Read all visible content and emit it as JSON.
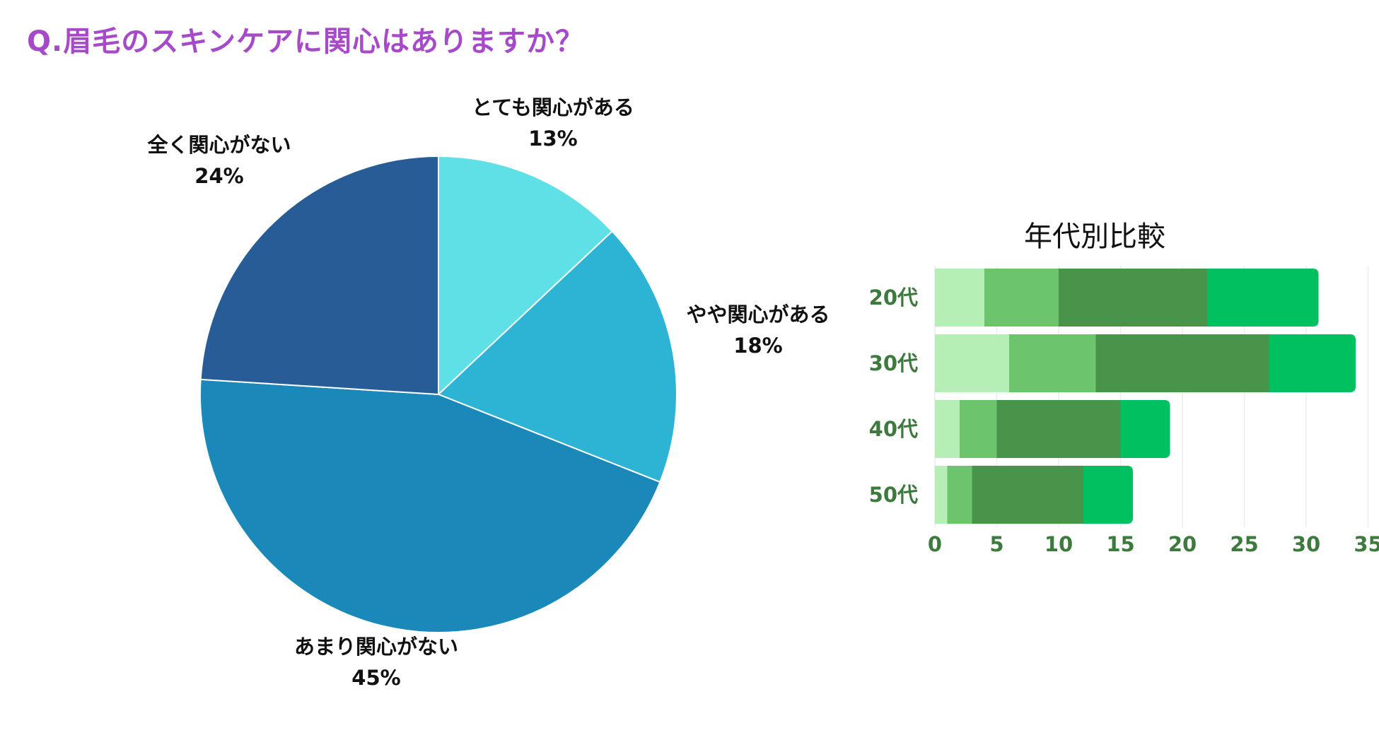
{
  "page": {
    "title": "Q.眉毛のスキンケアに関心はありますか？",
    "title_color": "#a64ac9"
  },
  "chart_data": [
    {
      "type": "pie",
      "title": "",
      "slices": [
        {
          "label": "とても関心がある",
          "value": 13,
          "value_label": "13%",
          "color": "#5ee0e6"
        },
        {
          "label": "やや関心がある",
          "value": 18,
          "value_label": "18%",
          "color": "#2db4d5"
        },
        {
          "label": "あまり関心がない",
          "value": 45,
          "value_label": "45%",
          "color": "#1a88b8"
        },
        {
          "label": "全く関心がない",
          "value": 24,
          "value_label": "24%",
          "color": "#275c96"
        }
      ]
    },
    {
      "type": "bar",
      "orientation": "horizontal",
      "stacked": true,
      "title": "年代別比較",
      "categories": [
        "20代",
        "30代",
        "40代",
        "50代"
      ],
      "series": [
        {
          "values": [
            4,
            6,
            2,
            1
          ],
          "color": "#b5efb5"
        },
        {
          "values": [
            6,
            7,
            3,
            2
          ],
          "color": "#6cc46c"
        },
        {
          "values": [
            12,
            14,
            10,
            9
          ],
          "color": "#47944a"
        },
        {
          "values": [
            9,
            7,
            4,
            4
          ],
          "color": "#00c060"
        }
      ],
      "xticks": [
        0,
        5,
        10,
        15,
        20,
        25,
        30,
        35
      ],
      "xlim": [
        0,
        35
      ],
      "grid": true,
      "label_color": "#3d7a3d"
    }
  ]
}
